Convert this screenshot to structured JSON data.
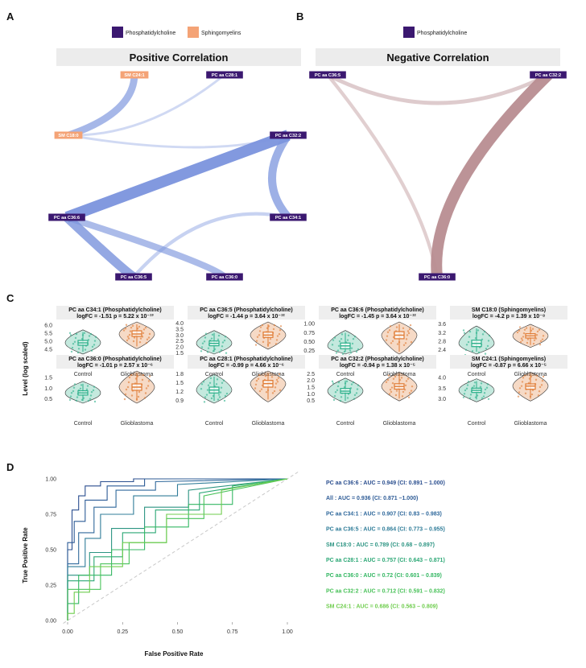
{
  "panels": {
    "a": "A",
    "b": "B",
    "c": "C",
    "d": "D"
  },
  "colors": {
    "pc": "#3b1870",
    "sm": "#f4a376",
    "pos_edge": "#7b94dd",
    "neg_edge": "#b88d91",
    "control": "#2bb08a",
    "glioblastoma": "#e07a32"
  },
  "network_a": {
    "legend": [
      "Phosphatidylcholine",
      "Sphingomyelins"
    ],
    "title": "Positive Correlation",
    "nodes": [
      {
        "id": "sm241",
        "label": "SM C24:1",
        "class": "sm"
      },
      {
        "id": "pc281",
        "label": "PC aa C28:1",
        "class": "pc"
      },
      {
        "id": "sm180",
        "label": "SM C18:0",
        "class": "sm"
      },
      {
        "id": "pc322",
        "label": "PC aa C32:2",
        "class": "pc"
      },
      {
        "id": "pc366",
        "label": "PC aa C36:6",
        "class": "pc"
      },
      {
        "id": "pc341",
        "label": "PC aa C34:1",
        "class": "pc"
      },
      {
        "id": "pc365",
        "label": "PC aa C36:5",
        "class": "pc"
      },
      {
        "id": "pc360",
        "label": "PC aa C36:0",
        "class": "pc"
      }
    ],
    "edges": [
      {
        "from": "sm241",
        "to": "sm180",
        "weight": 0.6
      },
      {
        "from": "pc281",
        "to": "sm180",
        "weight": 0.15
      },
      {
        "from": "sm180",
        "to": "pc322",
        "weight": 0.15
      },
      {
        "from": "pc366",
        "to": "pc322",
        "weight": 1.0
      },
      {
        "from": "pc322",
        "to": "pc341",
        "weight": 0.7
      },
      {
        "from": "pc366",
        "to": "pc365",
        "weight": 0.8
      },
      {
        "from": "pc366",
        "to": "pc360",
        "weight": 0.55
      },
      {
        "from": "pc365",
        "to": "pc341",
        "weight": 0.25
      }
    ]
  },
  "network_b": {
    "legend": [
      "Phosphatidylcholine"
    ],
    "title": "Negative Correlation",
    "nodes": [
      {
        "id": "pc365",
        "label": "PC aa C36:5",
        "class": "pc"
      },
      {
        "id": "pc322",
        "label": "PC aa C32:2",
        "class": "pc"
      },
      {
        "id": "pc360",
        "label": "PC aa C36:0",
        "class": "pc"
      }
    ],
    "edges": [
      {
        "from": "pc365",
        "to": "pc322",
        "weight": 0.3
      },
      {
        "from": "pc365",
        "to": "pc360",
        "weight": 0.25
      },
      {
        "from": "pc322",
        "to": "pc360",
        "weight": 1.0
      }
    ]
  },
  "violins": {
    "ylabel": "Level (log scaled)",
    "groups": [
      "Control",
      "Glioblastoma"
    ],
    "items": [
      {
        "name": "PC aa C34:1 (Phosphatidylcholine)",
        "stat": "logFC = -1.51   p = 5.22 x 10⁻¹³",
        "ticks": [
          "6.0",
          "5.5",
          "5.0",
          "4.5"
        ],
        "ylim": [
          4.2,
          6.2
        ],
        "control": {
          "q1": 4.75,
          "med": 4.9,
          "q3": 5.05
        },
        "gbm": {
          "q1": 5.3,
          "med": 5.45,
          "q3": 5.65
        }
      },
      {
        "name": "PC aa C36:5 (Phosphatidylcholine)",
        "stat": "logFC = -1.44   p = 3.64 x 10⁻¹²",
        "ticks": [
          "4.0",
          "3.5",
          "3.0",
          "2.5",
          "2.0",
          "1.5"
        ],
        "ylim": [
          1.4,
          4.1
        ],
        "control": {
          "q1": 2.1,
          "med": 2.3,
          "q3": 2.5
        },
        "gbm": {
          "q1": 2.8,
          "med": 3.0,
          "q3": 3.25
        }
      },
      {
        "name": "PC aa C36:6 (Phosphatidylcholine)",
        "stat": "logFC = -1.45   p = 3.64 x 10⁻¹²",
        "ticks": [
          "1.00",
          "0.75",
          "0.50",
          "0.25"
        ],
        "ylim": [
          0.15,
          1.05
        ],
        "control": {
          "q1": 0.3,
          "med": 0.38,
          "q3": 0.46
        },
        "gbm": {
          "q1": 0.58,
          "med": 0.68,
          "q3": 0.78
        }
      },
      {
        "name": "SM C18:0 (Sphingomyelins)",
        "stat": "logFC = -4.2   p = 1.39 x 10⁻⁸",
        "ticks": [
          "3.6",
          "3.2",
          "2.8",
          "2.4"
        ],
        "ylim": [
          2.2,
          3.7
        ],
        "control": {
          "q1": 2.55,
          "med": 2.7,
          "q3": 2.85
        },
        "gbm": {
          "q1": 2.95,
          "med": 3.05,
          "q3": 3.15
        }
      },
      {
        "name": "PC aa C36:0 (Phosphatidylcholine)",
        "stat": "logFC = -1.01   p = 2.57 x 10⁻⁶",
        "ticks": [
          "1.5",
          "1.0",
          "0.5"
        ],
        "ylim": [
          0.3,
          1.8
        ],
        "control": {
          "q1": 0.68,
          "med": 0.78,
          "q3": 0.88
        },
        "gbm": {
          "q1": 0.9,
          "med": 1.05,
          "q3": 1.2
        }
      },
      {
        "name": "PC aa C28:1 (Phosphatidylcholine)",
        "stat": "logFC = -0.99   p = 4.66 x 10⁻⁶",
        "ticks": [
          "1.8",
          "1.5",
          "1.2",
          "0.9"
        ],
        "ylim": [
          0.8,
          1.9
        ],
        "control": {
          "q1": 1.15,
          "med": 1.25,
          "q3": 1.35
        },
        "gbm": {
          "q1": 1.35,
          "med": 1.47,
          "q3": 1.58
        }
      },
      {
        "name": "PC aa C32:2 (Phosphatidylcholine)",
        "stat": "logFC = -0.94   p = 1.38 x 10⁻⁵",
        "ticks": [
          "2.5",
          "2.0",
          "1.5",
          "1.0",
          "0.5"
        ],
        "ylim": [
          0.3,
          2.7
        ],
        "control": {
          "q1": 1.05,
          "med": 1.2,
          "q3": 1.4
        },
        "gbm": {
          "q1": 1.35,
          "med": 1.55,
          "q3": 1.75
        }
      },
      {
        "name": "SM C24:1 (Sphingomyelins)",
        "stat": "logFC = -0.87   p = 6.66 x 10⁻⁵",
        "ticks": [
          "4.0",
          "3.5",
          "3.0"
        ],
        "ylim": [
          2.8,
          4.3
        ],
        "control": {
          "q1": 3.3,
          "med": 3.4,
          "q3": 3.5
        },
        "gbm": {
          "q1": 3.45,
          "med": 3.6,
          "q3": 3.7
        }
      }
    ]
  },
  "chart_data": {
    "type": "line",
    "title": "",
    "xlabel": "False Positive Rate",
    "ylabel": "True Positive Rate",
    "xlim": [
      0,
      1
    ],
    "ylim": [
      0,
      1
    ],
    "xticks": [
      "0.00",
      "0.25",
      "0.50",
      "0.75",
      "1.00"
    ],
    "yticks": [
      "0.00",
      "0.25",
      "0.50",
      "0.75",
      "1.00"
    ],
    "series": [
      {
        "name": "PC aa C36:6 : AUC = 0.949 (CI: 0.891 – 1.000)",
        "color": "#2b4f8f",
        "x": [
          0,
          0,
          0.02,
          0.02,
          0.05,
          0.05,
          0.08,
          0.08,
          0.15,
          0.15,
          0.3,
          0.3,
          1
        ],
        "y": [
          0,
          0.5,
          0.5,
          0.78,
          0.78,
          0.88,
          0.88,
          0.95,
          0.95,
          0.98,
          0.98,
          1,
          1
        ]
      },
      {
        "name": "All : AUC = 0.936 (CI: 0.871 –1.000)",
        "color": "#2d5b96",
        "x": [
          0,
          0,
          0.03,
          0.03,
          0.08,
          0.08,
          0.18,
          0.18,
          0.35,
          0.35,
          1
        ],
        "y": [
          0,
          0.55,
          0.55,
          0.7,
          0.7,
          0.85,
          0.85,
          0.95,
          0.95,
          1,
          1
        ]
      },
      {
        "name": "PC aa C34:1 : AUC = 0.907 (CI: 0.83 – 0.983)",
        "color": "#30699c",
        "x": [
          0,
          0,
          0.05,
          0.05,
          0.12,
          0.12,
          0.22,
          0.22,
          0.4,
          0.4,
          1
        ],
        "y": [
          0,
          0.4,
          0.4,
          0.62,
          0.62,
          0.8,
          0.8,
          0.92,
          0.92,
          0.98,
          1
        ]
      },
      {
        "name": "PC aa C36:5 : AUC = 0.864 (CI: 0.773 – 0.955)",
        "color": "#307d99",
        "x": [
          0,
          0,
          0.08,
          0.08,
          0.15,
          0.15,
          0.3,
          0.3,
          0.5,
          0.5,
          1
        ],
        "y": [
          0,
          0.38,
          0.38,
          0.58,
          0.58,
          0.75,
          0.75,
          0.88,
          0.88,
          0.96,
          1
        ]
      },
      {
        "name": "SM C18:0 : AUC = 0.789 (CI: 0.68 – 0.897)",
        "color": "#2c9482",
        "x": [
          0,
          0,
          0.1,
          0.1,
          0.2,
          0.2,
          0.35,
          0.35,
          0.55,
          0.55,
          1
        ],
        "y": [
          0,
          0.32,
          0.32,
          0.48,
          0.48,
          0.65,
          0.65,
          0.8,
          0.8,
          0.92,
          1
        ]
      },
      {
        "name": "PC aa C28:1 : AUC = 0.757 (CI: 0.643 – 0.871)",
        "color": "#2ba775",
        "x": [
          0,
          0,
          0.12,
          0.12,
          0.25,
          0.25,
          0.4,
          0.4,
          0.6,
          0.6,
          1
        ],
        "y": [
          0,
          0.28,
          0.28,
          0.45,
          0.45,
          0.62,
          0.62,
          0.78,
          0.78,
          0.9,
          1
        ]
      },
      {
        "name": "PC aa C36:0 : AUC = 0.72 (CI: 0.601 – 0.839)",
        "color": "#34b763",
        "x": [
          0,
          0,
          0.05,
          0.05,
          0.2,
          0.2,
          0.35,
          0.35,
          0.55,
          0.55,
          0.75,
          0.75,
          1
        ],
        "y": [
          0,
          0.12,
          0.12,
          0.32,
          0.32,
          0.5,
          0.5,
          0.66,
          0.66,
          0.82,
          0.82,
          0.95,
          1
        ]
      },
      {
        "name": "PC aa C32:2 : AUC = 0.712 (CI: 0.591 – 0.832)",
        "color": "#4ac25a",
        "x": [
          0,
          0,
          0.15,
          0.15,
          0.28,
          0.28,
          0.45,
          0.45,
          0.62,
          0.62,
          1
        ],
        "y": [
          0,
          0.22,
          0.22,
          0.4,
          0.4,
          0.55,
          0.55,
          0.72,
          0.72,
          0.88,
          1
        ]
      },
      {
        "name": "SM C24:1 : AUC = 0.686 (CI: 0.563 – 0.809)",
        "color": "#6fcd4e",
        "x": [
          0,
          0,
          0.03,
          0.03,
          0.1,
          0.1,
          0.25,
          0.25,
          0.45,
          0.45,
          0.7,
          0.7,
          1
        ],
        "y": [
          0,
          0.05,
          0.05,
          0.2,
          0.2,
          0.38,
          0.38,
          0.55,
          0.55,
          0.75,
          0.75,
          0.92,
          1
        ]
      }
    ]
  }
}
